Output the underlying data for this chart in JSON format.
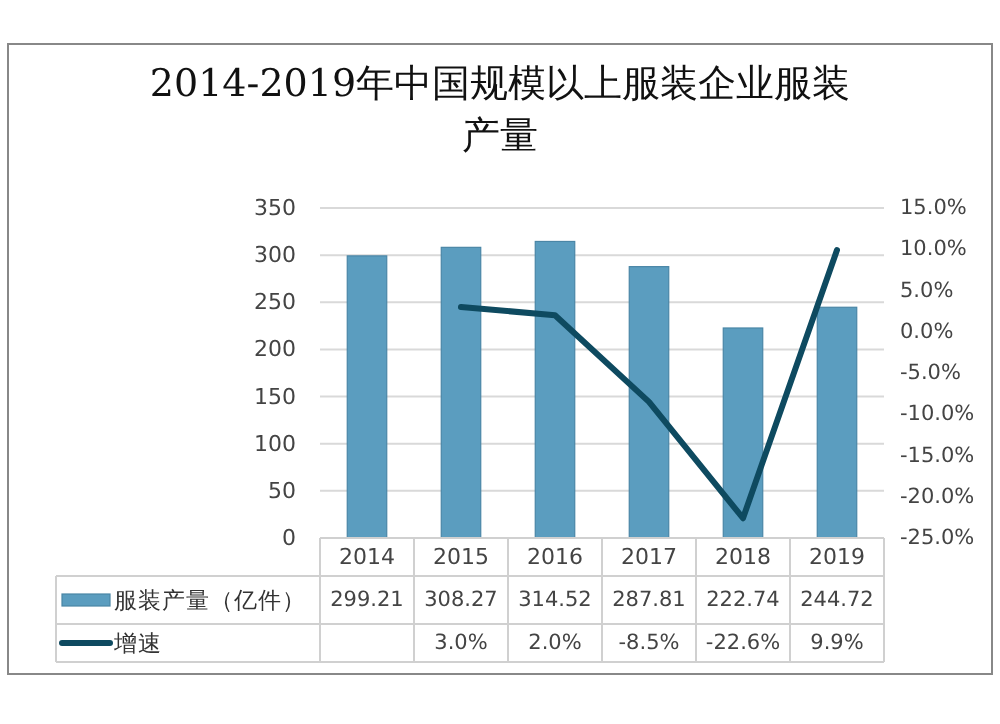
{
  "chart_data": {
    "type": "bar",
    "title": "2014-2019年中国规模以上服装企业服装产量",
    "categories": [
      "2014",
      "2015",
      "2016",
      "2017",
      "2018",
      "2019"
    ],
    "series": [
      {
        "name": "服装产量（亿件）",
        "color": "#5b9dbf",
        "values": [
          299.21,
          308.27,
          314.52,
          287.81,
          222.74,
          244.72
        ],
        "value_labels": [
          "299.21",
          "308.27",
          "314.52",
          "287.81",
          "222.74",
          "244.72"
        ]
      },
      {
        "name": "增速",
        "type": "line",
        "axis": "y2",
        "color": "#0e4a60",
        "values": [
          null,
          3.0,
          2.0,
          -8.5,
          -22.6,
          9.9
        ],
        "value_labels": [
          null,
          "3.0%",
          "2.0%",
          "-8.5%",
          "-22.6%",
          "9.9%"
        ]
      }
    ],
    "ylim": [
      0,
      350
    ],
    "yticks": [
      0,
      50,
      100,
      150,
      200,
      250,
      300,
      350
    ],
    "y2lim": [
      -25,
      15
    ],
    "y2ticks": [
      {
        "value": -25,
        "label": "-25.0%"
      },
      {
        "value": -20,
        "label": "-20.0%"
      },
      {
        "value": -15,
        "label": "-15.0%"
      },
      {
        "value": -10,
        "label": "-10.0%"
      },
      {
        "value": -5,
        "label": "-5.0%"
      },
      {
        "value": 0,
        "label": "0.0%"
      },
      {
        "value": 5,
        "label": "5.0%"
      },
      {
        "value": 10,
        "label": "10.0%"
      },
      {
        "value": 15,
        "label": "15.0%"
      }
    ],
    "grid": "y",
    "legend": "bottom"
  }
}
